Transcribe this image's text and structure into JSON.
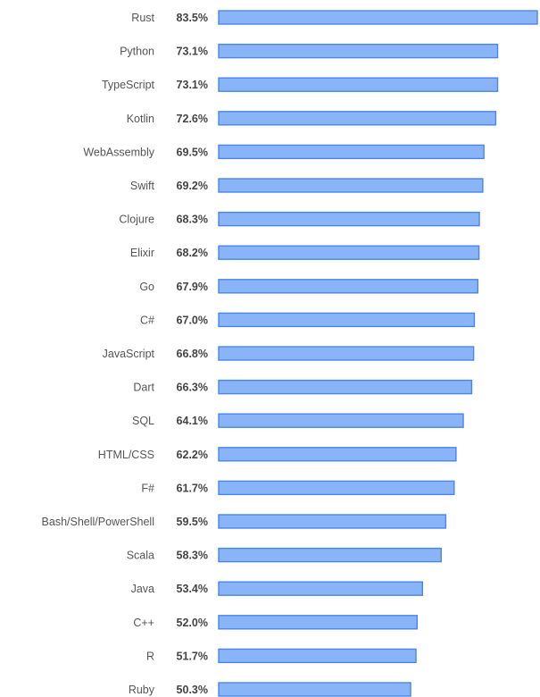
{
  "chart_data": {
    "type": "bar",
    "orientation": "horizontal",
    "title": "",
    "xlabel": "",
    "ylabel": "",
    "xlim": [
      0,
      83.5
    ],
    "grid": false,
    "value_suffix": "%",
    "bar_color": "#8ab4f8",
    "bar_border_color": "#4a86e8",
    "categories": [
      "Rust",
      "Python",
      "TypeScript",
      "Kotlin",
      "WebAssembly",
      "Swift",
      "Clojure",
      "Elixir",
      "Go",
      "C#",
      "JavaScript",
      "Dart",
      "SQL",
      "HTML/CSS",
      "F#",
      "Bash/Shell/PowerShell",
      "Scala",
      "Java",
      "C++",
      "R",
      "Ruby"
    ],
    "values": [
      83.5,
      73.1,
      73.1,
      72.6,
      69.5,
      69.2,
      68.3,
      68.2,
      67.9,
      67.0,
      66.8,
      66.3,
      64.1,
      62.2,
      61.7,
      59.5,
      58.3,
      53.4,
      52.0,
      51.7,
      50.3
    ]
  }
}
